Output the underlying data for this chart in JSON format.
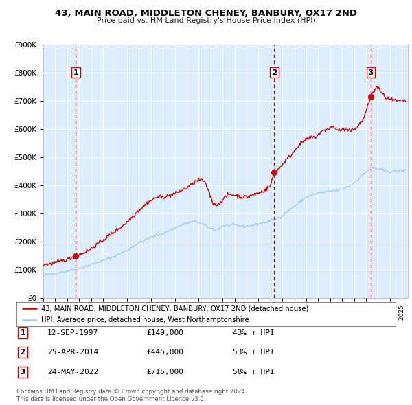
{
  "title": "43, MAIN ROAD, MIDDLETON CHENEY, BANBURY, OX17 2ND",
  "subtitle": "Price paid vs. HM Land Registry's House Price Index (HPI)",
  "legend_line1": "43, MAIN ROAD, MIDDLETON CHENEY, BANBURY, OX17 2ND (detached house)",
  "legend_line2": "HPI: Average price, detached house, West Northamptonshire",
  "footer1": "Contains HM Land Registry data © Crown copyright and database right 2024.",
  "footer2": "This data is licensed under the Open Government Licence v3.0.",
  "sale_color": "#cc0000",
  "hpi_color": "#aaccee",
  "vline_color": "#cc0000",
  "background_color": "#ddeeff",
  "sale_points": [
    {
      "year": 1997.72,
      "price": 149000,
      "label": "1"
    },
    {
      "year": 2014.32,
      "price": 445000,
      "label": "2"
    },
    {
      "year": 2022.39,
      "price": 715000,
      "label": "3"
    }
  ],
  "table_rows": [
    {
      "num": "1",
      "date": "12-SEP-1997",
      "price": "£149,000",
      "change": "43% ↑ HPI"
    },
    {
      "num": "2",
      "date": "25-APR-2014",
      "price": "£445,000",
      "change": "53% ↑ HPI"
    },
    {
      "num": "3",
      "date": "24-MAY-2022",
      "price": "£715,000",
      "change": "58% ↑ HPI"
    }
  ],
  "ylim": [
    0,
    900000
  ],
  "xlim_start": 1995.0,
  "xlim_end": 2025.5
}
